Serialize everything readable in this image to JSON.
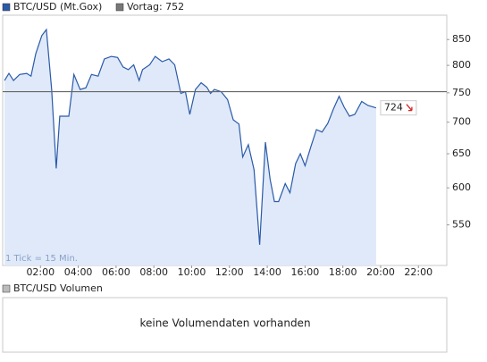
{
  "chart_data": {
    "type": "line",
    "log": true,
    "grid": false,
    "series": [
      {
        "name": "BTC/USD (Mt.Gox)",
        "color": "#2a5aa8",
        "fill": "#dfe9f9",
        "values": [
          772,
          785,
          772,
          783,
          785,
          780,
          822,
          858,
          870,
          756,
          628,
          710,
          710,
          783,
          756,
          759,
          783,
          780,
          812,
          817,
          815,
          797,
          792,
          801,
          772,
          792,
          801,
          817,
          807,
          812,
          801,
          749,
          752,
          713,
          756,
          768,
          760,
          749,
          756,
          752,
          738,
          704,
          697,
          645,
          664,
          626,
          525,
          668,
          612,
          581,
          581,
          606,
          593,
          635,
          650,
          632,
          660,
          688,
          684,
          698,
          722,
          744,
          725,
          710,
          713,
          735,
          728,
          724
        ]
      }
    ],
    "x": [
      0.1,
      0.33,
      0.57,
      0.9,
      1.27,
      1.5,
      1.75,
      2.07,
      2.31,
      2.59,
      2.83,
      3.02,
      3.5,
      3.77,
      4.1,
      4.4,
      4.7,
      5.05,
      5.38,
      5.75,
      6.08,
      6.37,
      6.65,
      6.93,
      7.22,
      7.4,
      7.78,
      8.07,
      8.44,
      8.8,
      9.1,
      9.43,
      9.67,
      9.9,
      10.2,
      10.5,
      10.8,
      11.0,
      11.2,
      11.56,
      11.9,
      12.2,
      12.5,
      12.7,
      13.0,
      13.3,
      13.6,
      13.9,
      14.15,
      14.38,
      14.6,
      14.95,
      15.2,
      15.5,
      15.75,
      16.0,
      16.3,
      16.6,
      16.9,
      17.2,
      17.5,
      17.8,
      18.07,
      18.35,
      18.63,
      19.0,
      19.33,
      19.76
    ],
    "xlim": [
      0,
      23.5
    ],
    "xticks": [
      {
        "value": 2,
        "label": "02:00"
      },
      {
        "value": 4,
        "label": "04:00"
      },
      {
        "value": 6,
        "label": "06:00"
      },
      {
        "value": 8,
        "label": "08:00"
      },
      {
        "value": 10,
        "label": "10:00"
      },
      {
        "value": 12,
        "label": "12:00"
      },
      {
        "value": 14,
        "label": "14:00"
      },
      {
        "value": 16,
        "label": "16:00"
      },
      {
        "value": 18,
        "label": "18:00"
      },
      {
        "value": 20,
        "label": "20:00"
      },
      {
        "value": 22,
        "label": "22:00"
      }
    ],
    "ylim": [
      500,
      900
    ],
    "yticks": [
      550,
      600,
      650,
      700,
      750,
      800,
      850
    ],
    "reference_value": 752,
    "reference_label": "Vortag: 752",
    "reference_color": "#666666",
    "end_label": "724",
    "annotation": "1 Tick = 15 Min."
  },
  "volume": {
    "legend": "BTC/USD Volumen",
    "message": "keine Volumendaten vorhanden"
  }
}
